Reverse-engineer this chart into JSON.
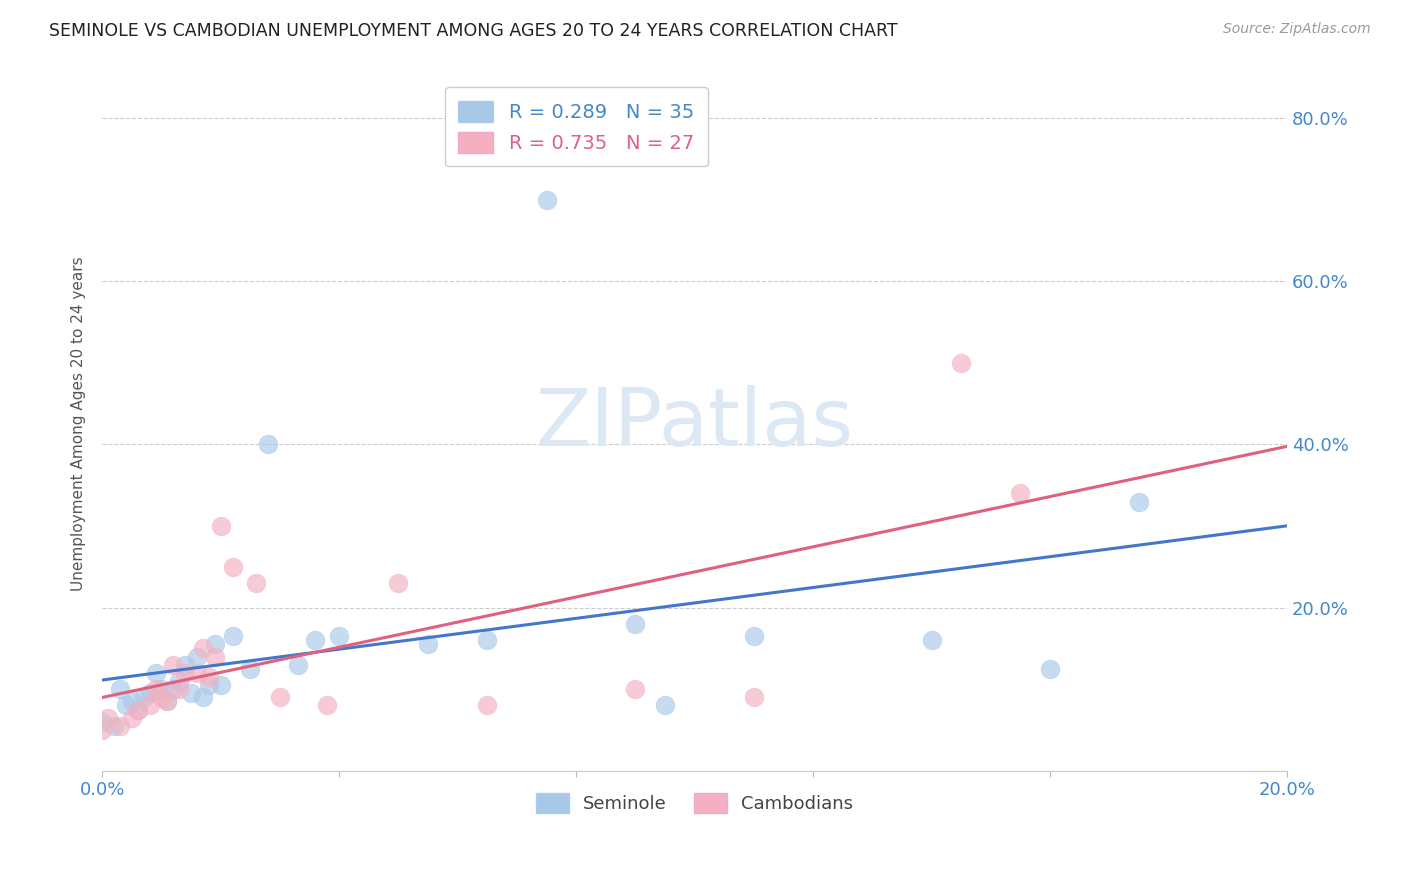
{
  "title": "SEMINOLE VS CAMBODIAN UNEMPLOYMENT AMONG AGES 20 TO 24 YEARS CORRELATION CHART",
  "source": "Source: ZipAtlas.com",
  "ylabel": "Unemployment Among Ages 20 to 24 years",
  "xlim": [
    0.0,
    0.2
  ],
  "ylim": [
    0.0,
    0.85
  ],
  "xticks": [
    0.0,
    0.04,
    0.08,
    0.12,
    0.16,
    0.2
  ],
  "yticks": [
    0.0,
    0.2,
    0.4,
    0.6,
    0.8
  ],
  "right_ytick_labels": [
    "",
    "20.0%",
    "40.0%",
    "60.0%",
    "80.0%"
  ],
  "xtick_labels": [
    "0.0%",
    "",
    "",
    "",
    "",
    "20.0%"
  ],
  "seminole_R": "0.289",
  "seminole_N": "35",
  "cambodian_R": "0.735",
  "cambodian_N": "27",
  "seminole_color": "#a8c8e8",
  "cambodian_color": "#f4b0c0",
  "seminole_line_color": "#4477cc",
  "cambodian_line_color": "#e06080",
  "watermark_color": "#dde8f5",
  "seminole_x": [
    0.0,
    0.002,
    0.003,
    0.004,
    0.005,
    0.006,
    0.007,
    0.008,
    0.009,
    0.01,
    0.011,
    0.012,
    0.013,
    0.014,
    0.015,
    0.016,
    0.017,
    0.018,
    0.019,
    0.02,
    0.022,
    0.025,
    0.028,
    0.033,
    0.036,
    0.04,
    0.055,
    0.065,
    0.075,
    0.09,
    0.095,
    0.11,
    0.14,
    0.16,
    0.175
  ],
  "seminole_y": [
    0.06,
    0.055,
    0.1,
    0.08,
    0.085,
    0.075,
    0.09,
    0.095,
    0.12,
    0.1,
    0.085,
    0.1,
    0.11,
    0.13,
    0.095,
    0.14,
    0.09,
    0.105,
    0.155,
    0.105,
    0.165,
    0.125,
    0.4,
    0.13,
    0.16,
    0.165,
    0.155,
    0.16,
    0.7,
    0.18,
    0.08,
    0.165,
    0.16,
    0.125,
    0.33
  ],
  "cambodian_x": [
    0.0,
    0.001,
    0.003,
    0.005,
    0.006,
    0.008,
    0.009,
    0.01,
    0.011,
    0.012,
    0.013,
    0.014,
    0.016,
    0.017,
    0.018,
    0.019,
    0.02,
    0.022,
    0.026,
    0.03,
    0.038,
    0.05,
    0.065,
    0.09,
    0.11,
    0.145,
    0.155
  ],
  "cambodian_y": [
    0.05,
    0.065,
    0.055,
    0.065,
    0.075,
    0.08,
    0.1,
    0.09,
    0.085,
    0.13,
    0.1,
    0.12,
    0.12,
    0.15,
    0.115,
    0.14,
    0.3,
    0.25,
    0.23,
    0.09,
    0.08,
    0.23,
    0.08,
    0.1,
    0.09,
    0.5,
    0.34
  ]
}
